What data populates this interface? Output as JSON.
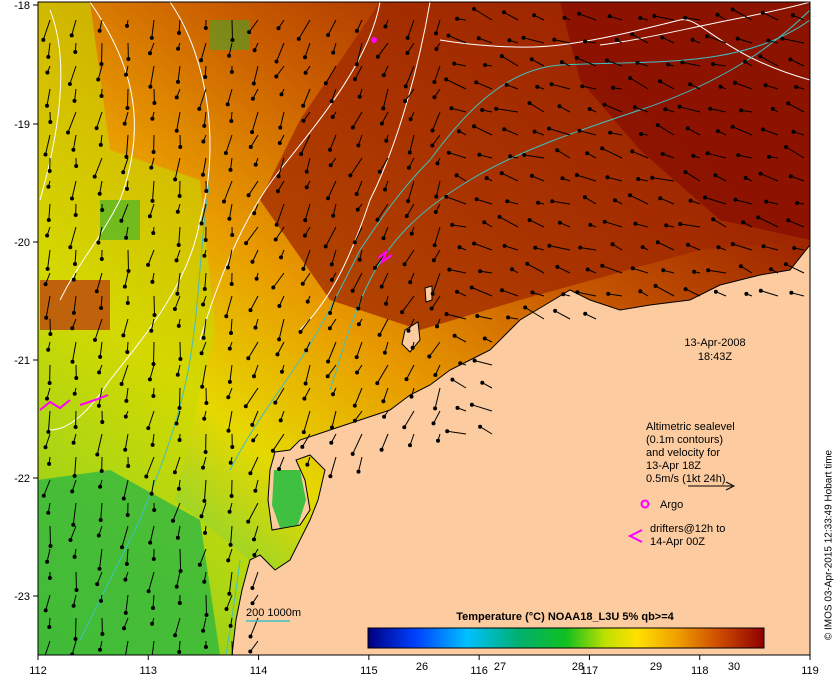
{
  "map": {
    "lon_ticks": [
      "112",
      "113",
      "114",
      "115",
      "116",
      "117",
      "118",
      "119"
    ],
    "lat_ticks": [
      "-18",
      "-19",
      "-20",
      "-21",
      "-22",
      "-23"
    ]
  },
  "timestamp": {
    "date": "13-Apr-2008",
    "time": "18:43Z"
  },
  "legend": {
    "line1": "Altimetric sealevel",
    "line2": "(0.1m contours)",
    "line3": "and velocity for",
    "line4": "13-Apr 18Z",
    "line5": "0.5m/s (1kt 24h)",
    "argo": "Argo",
    "drifters1": "drifters@12h to",
    "drifters2": "14-Apr 00Z"
  },
  "depth_contours": "200  1000m",
  "colorbar": {
    "title": "Temperature (°C) NOAA18_L3U 5% qb>=4",
    "ticks": [
      "26",
      "27",
      "28",
      "29",
      "30"
    ]
  },
  "credit": "© IMOS 03-Apr-2015 12:33:49 Hobart time",
  "colors": {
    "land": "#fccca0",
    "argo": "#ff00ff",
    "contour_isobath": "#40c0c0",
    "contour_sealevel": "#ffffff"
  }
}
